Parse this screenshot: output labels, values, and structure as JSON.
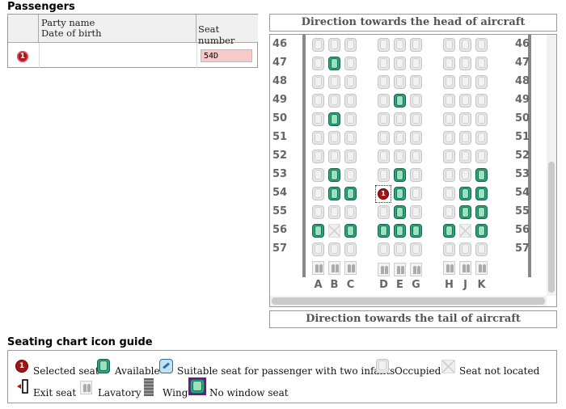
{
  "passengers": {
    "title": "Passengers",
    "col_name_line1": "Party name",
    "col_name_line2": "Date of birth",
    "col_seat": "Seat number",
    "rows": [
      {
        "badge": "1",
        "seat_value": "54D"
      }
    ]
  },
  "seatmap": {
    "head_label": "Direction towards the head of aircraft",
    "tail_label": "Direction towards the tail of aircraft",
    "rows": [
      "46",
      "47",
      "48",
      "49",
      "50",
      "51",
      "52",
      "53",
      "54",
      "55",
      "56",
      "57"
    ],
    "columns": [
      "A",
      "B",
      "C",
      "D",
      "E",
      "G",
      "H",
      "J",
      "K"
    ],
    "selected_badge": "1",
    "seats": {
      "46": [
        "occupied",
        "occupied",
        "occupied",
        "occupied",
        "occupied",
        "occupied",
        "occupied",
        "occupied",
        "occupied"
      ],
      "47": [
        "occupied",
        "available",
        "occupied",
        "occupied",
        "occupied",
        "occupied",
        "occupied",
        "occupied",
        "occupied"
      ],
      "48": [
        "occupied",
        "occupied",
        "occupied",
        "occupied",
        "occupied",
        "occupied",
        "occupied",
        "occupied",
        "occupied"
      ],
      "49": [
        "occupied",
        "occupied",
        "occupied",
        "occupied",
        "available",
        "occupied",
        "occupied",
        "occupied",
        "occupied"
      ],
      "50": [
        "occupied",
        "available",
        "occupied",
        "occupied",
        "occupied",
        "occupied",
        "occupied",
        "occupied",
        "occupied"
      ],
      "51": [
        "occupied",
        "occupied",
        "occupied",
        "occupied",
        "occupied",
        "occupied",
        "occupied",
        "occupied",
        "occupied"
      ],
      "52": [
        "occupied",
        "occupied",
        "occupied",
        "occupied",
        "occupied",
        "occupied",
        "occupied",
        "occupied",
        "occupied"
      ],
      "53": [
        "occupied",
        "available",
        "occupied",
        "occupied",
        "available",
        "occupied",
        "occupied",
        "occupied",
        "available"
      ],
      "54": [
        "occupied",
        "available",
        "available",
        "selected",
        "available",
        "occupied",
        "occupied",
        "available",
        "available"
      ],
      "55": [
        "occupied",
        "occupied",
        "occupied",
        "occupied",
        "available",
        "occupied",
        "occupied",
        "available",
        "available"
      ],
      "56": [
        "available",
        "not-located",
        "available",
        "available",
        "available",
        "available",
        "available",
        "not-located",
        "available"
      ],
      "57": [
        "occupied",
        "occupied",
        "occupied",
        "occupied",
        "occupied",
        "occupied",
        "occupied",
        "occupied",
        "occupied"
      ]
    },
    "lavatory_rows_after_57": {
      "left": 3,
      "center": 3,
      "right": 3
    }
  },
  "guide": {
    "title": "Seating chart icon guide",
    "items": [
      {
        "icon": "selected-seat-icon",
        "label": "Selected seat"
      },
      {
        "icon": "available-seat-icon",
        "label": "Available"
      },
      {
        "icon": "infant-seat-icon",
        "label": "Suitable seat for passenger with two infants"
      },
      {
        "icon": "occupied-seat-icon",
        "label": "Occupied"
      },
      {
        "icon": "not-located-seat-icon",
        "label": "Seat not located"
      },
      {
        "icon": "exit-seat-icon",
        "label": "Exit seat"
      },
      {
        "icon": "lavatory-icon",
        "label": "Lavatory"
      },
      {
        "icon": "wing-icon",
        "label": "Wing"
      },
      {
        "icon": "no-window-seat-icon",
        "label": "No window seat"
      }
    ]
  },
  "colors": {
    "available": "#2a8a5a",
    "selected": "#a51414",
    "no_window": "#6b1a86"
  }
}
